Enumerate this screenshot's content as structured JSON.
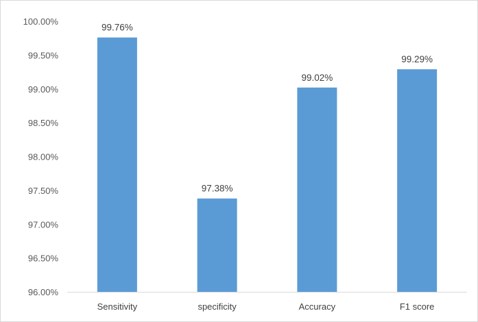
{
  "chart_data": {
    "type": "bar",
    "title": "",
    "xlabel": "",
    "ylabel": "",
    "categories": [
      "Sensitivity",
      "specificity",
      "Accuracy",
      "F1 score"
    ],
    "values": [
      99.76,
      97.38,
      99.02,
      99.29
    ],
    "data_labels": [
      "99.76%",
      "97.38%",
      "99.02%",
      "99.29%"
    ],
    "ylim": [
      96.0,
      100.0
    ],
    "yticks": [
      96.0,
      96.5,
      97.0,
      97.5,
      98.0,
      98.5,
      99.0,
      99.5,
      100.0
    ],
    "ytick_labels": [
      "96.00%",
      "96.50%",
      "97.00%",
      "97.50%",
      "98.00%",
      "98.50%",
      "99.00%",
      "99.50%",
      "100.00%"
    ],
    "bar_color": "#5b9bd5",
    "axis_color": "#d9d9d9",
    "grid": false,
    "legend": "none"
  }
}
